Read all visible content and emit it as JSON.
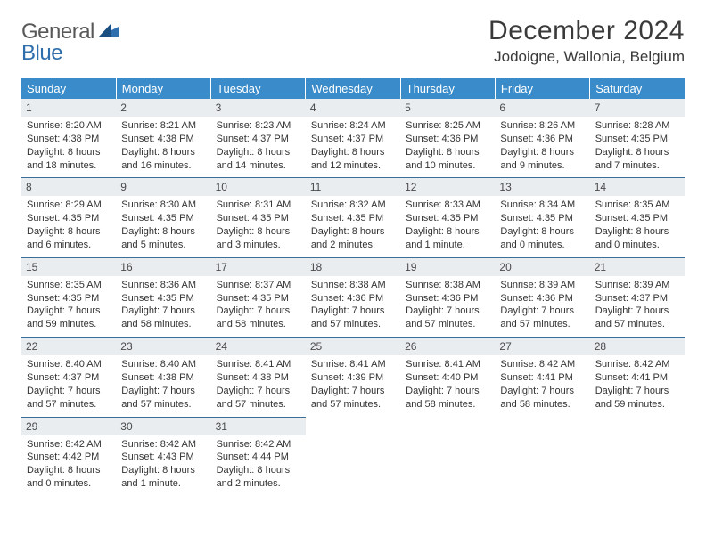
{
  "logo": {
    "word1": "General",
    "word2": "Blue"
  },
  "colors": {
    "header_bg": "#3a8bc9",
    "header_text": "#ffffff",
    "daybar_bg": "#e9edf0",
    "rule": "#3a6f9a",
    "logo_gray": "#585858",
    "logo_blue": "#2f6fae"
  },
  "title": "December 2024",
  "location": "Jodoigne, Wallonia, Belgium",
  "weekdays": [
    "Sunday",
    "Monday",
    "Tuesday",
    "Wednesday",
    "Thursday",
    "Friday",
    "Saturday"
  ],
  "weeks": [
    [
      {
        "n": "1",
        "sr": "Sunrise: 8:20 AM",
        "ss": "Sunset: 4:38 PM",
        "d1": "Daylight: 8 hours",
        "d2": "and 18 minutes."
      },
      {
        "n": "2",
        "sr": "Sunrise: 8:21 AM",
        "ss": "Sunset: 4:38 PM",
        "d1": "Daylight: 8 hours",
        "d2": "and 16 minutes."
      },
      {
        "n": "3",
        "sr": "Sunrise: 8:23 AM",
        "ss": "Sunset: 4:37 PM",
        "d1": "Daylight: 8 hours",
        "d2": "and 14 minutes."
      },
      {
        "n": "4",
        "sr": "Sunrise: 8:24 AM",
        "ss": "Sunset: 4:37 PM",
        "d1": "Daylight: 8 hours",
        "d2": "and 12 minutes."
      },
      {
        "n": "5",
        "sr": "Sunrise: 8:25 AM",
        "ss": "Sunset: 4:36 PM",
        "d1": "Daylight: 8 hours",
        "d2": "and 10 minutes."
      },
      {
        "n": "6",
        "sr": "Sunrise: 8:26 AM",
        "ss": "Sunset: 4:36 PM",
        "d1": "Daylight: 8 hours",
        "d2": "and 9 minutes."
      },
      {
        "n": "7",
        "sr": "Sunrise: 8:28 AM",
        "ss": "Sunset: 4:35 PM",
        "d1": "Daylight: 8 hours",
        "d2": "and 7 minutes."
      }
    ],
    [
      {
        "n": "8",
        "sr": "Sunrise: 8:29 AM",
        "ss": "Sunset: 4:35 PM",
        "d1": "Daylight: 8 hours",
        "d2": "and 6 minutes."
      },
      {
        "n": "9",
        "sr": "Sunrise: 8:30 AM",
        "ss": "Sunset: 4:35 PM",
        "d1": "Daylight: 8 hours",
        "d2": "and 5 minutes."
      },
      {
        "n": "10",
        "sr": "Sunrise: 8:31 AM",
        "ss": "Sunset: 4:35 PM",
        "d1": "Daylight: 8 hours",
        "d2": "and 3 minutes."
      },
      {
        "n": "11",
        "sr": "Sunrise: 8:32 AM",
        "ss": "Sunset: 4:35 PM",
        "d1": "Daylight: 8 hours",
        "d2": "and 2 minutes."
      },
      {
        "n": "12",
        "sr": "Sunrise: 8:33 AM",
        "ss": "Sunset: 4:35 PM",
        "d1": "Daylight: 8 hours",
        "d2": "and 1 minute."
      },
      {
        "n": "13",
        "sr": "Sunrise: 8:34 AM",
        "ss": "Sunset: 4:35 PM",
        "d1": "Daylight: 8 hours",
        "d2": "and 0 minutes."
      },
      {
        "n": "14",
        "sr": "Sunrise: 8:35 AM",
        "ss": "Sunset: 4:35 PM",
        "d1": "Daylight: 8 hours",
        "d2": "and 0 minutes."
      }
    ],
    [
      {
        "n": "15",
        "sr": "Sunrise: 8:35 AM",
        "ss": "Sunset: 4:35 PM",
        "d1": "Daylight: 7 hours",
        "d2": "and 59 minutes."
      },
      {
        "n": "16",
        "sr": "Sunrise: 8:36 AM",
        "ss": "Sunset: 4:35 PM",
        "d1": "Daylight: 7 hours",
        "d2": "and 58 minutes."
      },
      {
        "n": "17",
        "sr": "Sunrise: 8:37 AM",
        "ss": "Sunset: 4:35 PM",
        "d1": "Daylight: 7 hours",
        "d2": "and 58 minutes."
      },
      {
        "n": "18",
        "sr": "Sunrise: 8:38 AM",
        "ss": "Sunset: 4:36 PM",
        "d1": "Daylight: 7 hours",
        "d2": "and 57 minutes."
      },
      {
        "n": "19",
        "sr": "Sunrise: 8:38 AM",
        "ss": "Sunset: 4:36 PM",
        "d1": "Daylight: 7 hours",
        "d2": "and 57 minutes."
      },
      {
        "n": "20",
        "sr": "Sunrise: 8:39 AM",
        "ss": "Sunset: 4:36 PM",
        "d1": "Daylight: 7 hours",
        "d2": "and 57 minutes."
      },
      {
        "n": "21",
        "sr": "Sunrise: 8:39 AM",
        "ss": "Sunset: 4:37 PM",
        "d1": "Daylight: 7 hours",
        "d2": "and 57 minutes."
      }
    ],
    [
      {
        "n": "22",
        "sr": "Sunrise: 8:40 AM",
        "ss": "Sunset: 4:37 PM",
        "d1": "Daylight: 7 hours",
        "d2": "and 57 minutes."
      },
      {
        "n": "23",
        "sr": "Sunrise: 8:40 AM",
        "ss": "Sunset: 4:38 PM",
        "d1": "Daylight: 7 hours",
        "d2": "and 57 minutes."
      },
      {
        "n": "24",
        "sr": "Sunrise: 8:41 AM",
        "ss": "Sunset: 4:38 PM",
        "d1": "Daylight: 7 hours",
        "d2": "and 57 minutes."
      },
      {
        "n": "25",
        "sr": "Sunrise: 8:41 AM",
        "ss": "Sunset: 4:39 PM",
        "d1": "Daylight: 7 hours",
        "d2": "and 57 minutes."
      },
      {
        "n": "26",
        "sr": "Sunrise: 8:41 AM",
        "ss": "Sunset: 4:40 PM",
        "d1": "Daylight: 7 hours",
        "d2": "and 58 minutes."
      },
      {
        "n": "27",
        "sr": "Sunrise: 8:42 AM",
        "ss": "Sunset: 4:41 PM",
        "d1": "Daylight: 7 hours",
        "d2": "and 58 minutes."
      },
      {
        "n": "28",
        "sr": "Sunrise: 8:42 AM",
        "ss": "Sunset: 4:41 PM",
        "d1": "Daylight: 7 hours",
        "d2": "and 59 minutes."
      }
    ],
    [
      {
        "n": "29",
        "sr": "Sunrise: 8:42 AM",
        "ss": "Sunset: 4:42 PM",
        "d1": "Daylight: 8 hours",
        "d2": "and 0 minutes."
      },
      {
        "n": "30",
        "sr": "Sunrise: 8:42 AM",
        "ss": "Sunset: 4:43 PM",
        "d1": "Daylight: 8 hours",
        "d2": "and 1 minute."
      },
      {
        "n": "31",
        "sr": "Sunrise: 8:42 AM",
        "ss": "Sunset: 4:44 PM",
        "d1": "Daylight: 8 hours",
        "d2": "and 2 minutes."
      },
      null,
      null,
      null,
      null
    ]
  ]
}
